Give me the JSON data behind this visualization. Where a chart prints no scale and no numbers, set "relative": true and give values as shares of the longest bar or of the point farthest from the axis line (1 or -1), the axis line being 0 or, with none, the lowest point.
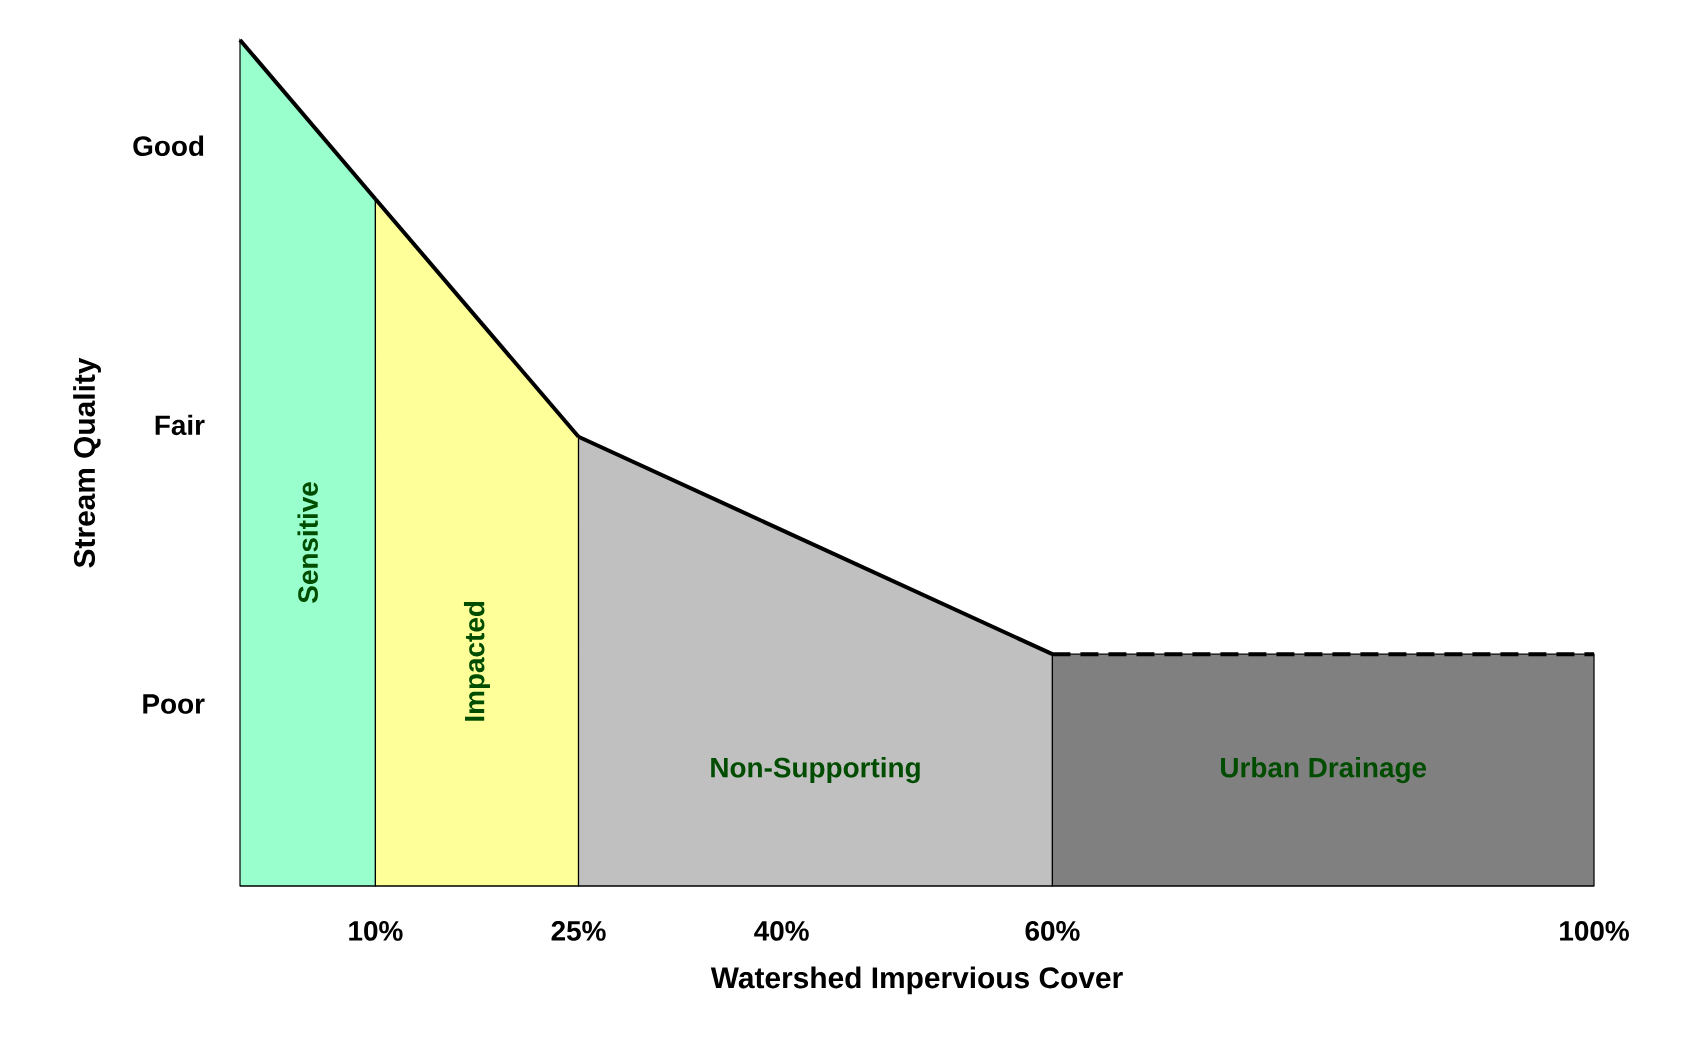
{
  "chart_data": {
    "type": "area",
    "xlabel": "Watershed Impervious Cover",
    "ylabel": "Stream Quality",
    "xlim": [
      0,
      100
    ],
    "relative": true,
    "xticks": [
      {
        "value": 10,
        "label": "10%"
      },
      {
        "value": 25,
        "label": "25%"
      },
      {
        "value": 40,
        "label": "40%"
      },
      {
        "value": 60,
        "label": "60%"
      },
      {
        "value": 100,
        "label": "100%"
      }
    ],
    "annotations": [
      "Good",
      "Fair",
      "Poor"
    ],
    "series": [
      {
        "name": "Sensitive",
        "color": "#99ffcc",
        "x": [
          0,
          10
        ],
        "values": [
          1,
          0.812
        ]
      },
      {
        "name": "Impacted",
        "color": "#ffff99",
        "x": [
          10,
          25
        ],
        "values": [
          0.812,
          0.531
        ]
      },
      {
        "name": "Non-Supporting",
        "color": "#c0c0c0",
        "x": [
          25,
          60
        ],
        "values": [
          0.531,
          0.274
        ]
      },
      {
        "name": "Urban Drainage",
        "color": "#808080",
        "x": [
          60,
          100
        ],
        "values": [
          0.274,
          0.274
        ],
        "line_style": "dashed"
      }
    ]
  }
}
